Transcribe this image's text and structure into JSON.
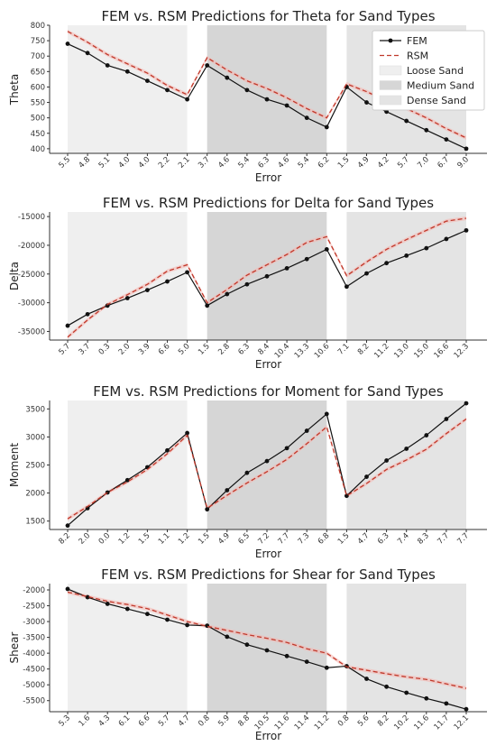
{
  "colors": {
    "fem": "#111111",
    "rsm": "#c0392b",
    "rsm_band": "#f5b7b1",
    "loose": "#efefef",
    "medium": "#d6d6d6",
    "dense": "#e4e4e4"
  },
  "legend": {
    "fem": "FEM",
    "rsm": "RSM",
    "loose": "Loose Sand",
    "medium": "Medium Sand",
    "dense": "Dense Sand"
  },
  "chart_data": [
    {
      "type": "line",
      "title": "FEM vs. RSM Predictions for Theta for Sand Types",
      "xlabel": "Error",
      "ylabel": "Theta",
      "categories": [
        "5.5",
        "4.8",
        "5.1",
        "4.0",
        "4.0",
        "2.2",
        "2.1",
        "3.7",
        "4.6",
        "5.4",
        "6.3",
        "4.6",
        "5.4",
        "6.2",
        "1.5",
        "4.9",
        "4.2",
        "5.7",
        "7.0",
        "6.7",
        "9.0"
      ],
      "ylim": [
        385,
        800
      ],
      "yticks": [
        400,
        450,
        500,
        550,
        600,
        650,
        700,
        750,
        800
      ],
      "legend_position": "top-right",
      "series": [
        {
          "name": "FEM",
          "values": [
            740,
            710,
            670,
            650,
            620,
            590,
            560,
            670,
            630,
            590,
            560,
            540,
            500,
            470,
            600,
            550,
            520,
            490,
            460,
            430,
            400
          ]
        },
        {
          "name": "RSM",
          "values": [
            780,
            745,
            705,
            675,
            645,
            605,
            575,
            695,
            655,
            620,
            595,
            565,
            530,
            500,
            610,
            585,
            555,
            530,
            500,
            465,
            435
          ]
        }
      ]
    },
    {
      "type": "line",
      "title": "FEM vs. RSM Predictions for Delta for Sand Types",
      "xlabel": "Error",
      "ylabel": "Delta",
      "categories": [
        "5.7",
        "3.7",
        "0.3",
        "2.0",
        "3.9",
        "6.6",
        "5.0",
        "1.5",
        "2.8",
        "6.3",
        "8.4",
        "10.4",
        "13.3",
        "10.6",
        "7.1",
        "8.2",
        "11.2",
        "13.0",
        "15.0",
        "16.6",
        "12.3"
      ],
      "ylim": [
        -36500,
        -14200
      ],
      "yticks": [
        -35000,
        -30000,
        -25000,
        -20000,
        -15000
      ],
      "series": [
        {
          "name": "FEM",
          "values": [
            -34000,
            -32000,
            -30500,
            -29200,
            -27800,
            -26300,
            -24700,
            -30500,
            -28500,
            -26800,
            -25400,
            -24000,
            -22400,
            -20700,
            -27200,
            -24900,
            -23100,
            -21800,
            -20500,
            -18900,
            -17400
          ]
        },
        {
          "name": "RSM",
          "values": [
            -36000,
            -33000,
            -30300,
            -28600,
            -26800,
            -24500,
            -23400,
            -30000,
            -27700,
            -25200,
            -23400,
            -21600,
            -19500,
            -18500,
            -25300,
            -22900,
            -20700,
            -19000,
            -17400,
            -15800,
            -15300
          ]
        }
      ]
    },
    {
      "type": "line",
      "title": "FEM vs. RSM Predictions for Moment for Sand Types",
      "xlabel": "Error",
      "ylabel": "Moment",
      "categories": [
        "8.2",
        "2.0",
        "0.0",
        "1.2",
        "1.5",
        "1.1",
        "1.2",
        "1.5",
        "4.9",
        "6.5",
        "7.2",
        "7.7",
        "7.3",
        "6.8",
        "1.5",
        "4.7",
        "6.3",
        "7.4",
        "8.3",
        "7.7",
        "7.7"
      ],
      "ylim": [
        1350,
        3650
      ],
      "yticks": [
        1500,
        2000,
        2500,
        3000,
        3500
      ],
      "series": [
        {
          "name": "FEM",
          "values": [
            1420,
            1730,
            2010,
            2230,
            2460,
            2760,
            3070,
            1710,
            2050,
            2360,
            2570,
            2800,
            3110,
            3410,
            1950,
            2290,
            2580,
            2790,
            3030,
            3320,
            3600
          ]
        },
        {
          "name": "RSM",
          "values": [
            1540,
            1760,
            2010,
            2200,
            2420,
            2700,
            3030,
            1730,
            1960,
            2180,
            2380,
            2600,
            2880,
            3180,
            1950,
            2170,
            2420,
            2590,
            2780,
            3060,
            3320
          ]
        }
      ]
    },
    {
      "type": "line",
      "title": "FEM vs. RSM Predictions for Shear for Sand Types",
      "xlabel": "Error",
      "ylabel": "Shear",
      "categories": [
        "5.3",
        "1.6",
        "4.3",
        "6.1",
        "6.6",
        "5.7",
        "4.7",
        "0.8",
        "5.9",
        "8.8",
        "10.5",
        "11.6",
        "11.4",
        "11.2",
        "0.8",
        "5.6",
        "8.2",
        "10.2",
        "11.6",
        "11.7",
        "12.1"
      ],
      "ylim": [
        -5850,
        -1800
      ],
      "yticks": [
        -5500,
        -5000,
        -4500,
        -4000,
        -3500,
        -3000,
        -2500,
        -2000
      ],
      "series": [
        {
          "name": "FEM",
          "values": [
            -1970,
            -2230,
            -2440,
            -2600,
            -2760,
            -2940,
            -3110,
            -3130,
            -3480,
            -3730,
            -3910,
            -4090,
            -4270,
            -4460,
            -4410,
            -4810,
            -5060,
            -5250,
            -5430,
            -5590,
            -5770
          ]
        },
        {
          "name": "RSM",
          "values": [
            -2070,
            -2210,
            -2360,
            -2460,
            -2590,
            -2790,
            -3000,
            -3150,
            -3280,
            -3410,
            -3530,
            -3660,
            -3860,
            -4000,
            -4430,
            -4540,
            -4650,
            -4750,
            -4830,
            -4970,
            -5110
          ]
        }
      ]
    }
  ]
}
